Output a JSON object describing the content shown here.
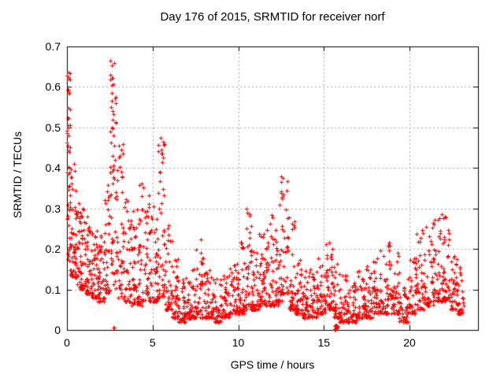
{
  "window": {
    "background": "#ffffff"
  },
  "chart_data": {
    "type": "scatter",
    "title": "Day 176 of 2015, SRMTID for receiver norf",
    "xlabel": "GPS time / hours",
    "ylabel": "SRMTID / TECUs",
    "xlim": [
      0,
      24
    ],
    "ylim": [
      0,
      0.7
    ],
    "xticks": [
      {
        "v": 0,
        "label": "0"
      },
      {
        "v": 5,
        "label": "5"
      },
      {
        "v": 10,
        "label": "10"
      },
      {
        "v": 15,
        "label": "15"
      },
      {
        "v": 20,
        "label": "20"
      }
    ],
    "yticks": [
      {
        "v": 0.0,
        "label": "0"
      },
      {
        "v": 0.1,
        "label": "0.1"
      },
      {
        "v": 0.2,
        "label": "0.2"
      },
      {
        "v": 0.3,
        "label": "0.3"
      },
      {
        "v": 0.4,
        "label": "0.4"
      },
      {
        "v": 0.5,
        "label": "0.5"
      },
      {
        "v": 0.6,
        "label": "0.6"
      },
      {
        "v": 0.7,
        "label": "0.7"
      }
    ],
    "grid": true,
    "legend": "none",
    "marker": {
      "shape": "plus",
      "color": "#ff0000",
      "size": 5
    },
    "colors": {
      "marker": "#ff0000",
      "grid": "#a8a8a8",
      "axis": "#000000",
      "text": "#000000",
      "background": "#ffffff"
    },
    "seed": 20150176,
    "bins_format": [
      "x_start",
      "x_end",
      "count",
      "y_low",
      "y_high",
      "tail_power"
    ],
    "density_bins": [
      [
        0.0,
        0.2,
        40,
        0.17,
        0.635,
        1.5
      ],
      [
        0.2,
        0.6,
        55,
        0.13,
        0.42,
        2.0
      ],
      [
        0.6,
        1.0,
        52,
        0.1,
        0.32,
        2.0
      ],
      [
        1.0,
        1.4,
        48,
        0.09,
        0.28,
        2.0
      ],
      [
        1.4,
        1.8,
        48,
        0.08,
        0.26,
        2.0
      ],
      [
        1.8,
        2.2,
        45,
        0.07,
        0.24,
        2.0
      ],
      [
        2.2,
        2.5,
        34,
        0.09,
        0.36,
        1.8
      ],
      [
        2.5,
        2.9,
        48,
        0.1,
        0.665,
        1.4
      ],
      [
        2.9,
        3.3,
        42,
        0.08,
        0.46,
        1.8
      ],
      [
        3.3,
        3.7,
        40,
        0.07,
        0.34,
        2.0
      ],
      [
        3.7,
        4.1,
        40,
        0.06,
        0.3,
        2.0
      ],
      [
        4.1,
        4.5,
        40,
        0.06,
        0.37,
        2.0
      ],
      [
        4.5,
        4.9,
        40,
        0.07,
        0.35,
        2.0
      ],
      [
        4.9,
        5.3,
        40,
        0.07,
        0.31,
        2.0
      ],
      [
        5.3,
        5.7,
        42,
        0.08,
        0.48,
        1.6
      ],
      [
        5.7,
        6.1,
        40,
        0.05,
        0.26,
        2.2
      ],
      [
        6.1,
        6.5,
        40,
        0.03,
        0.18,
        2.2
      ],
      [
        6.5,
        7.0,
        44,
        0.02,
        0.13,
        2.2
      ],
      [
        7.0,
        7.5,
        44,
        0.03,
        0.15,
        2.2
      ],
      [
        7.5,
        8.0,
        44,
        0.03,
        0.23,
        2.4
      ],
      [
        8.0,
        8.5,
        44,
        0.03,
        0.15,
        2.2
      ],
      [
        8.5,
        9.0,
        44,
        0.02,
        0.13,
        2.2
      ],
      [
        9.0,
        9.5,
        44,
        0.03,
        0.14,
        2.2
      ],
      [
        9.5,
        10.0,
        44,
        0.04,
        0.17,
        2.2
      ],
      [
        10.0,
        10.4,
        40,
        0.04,
        0.22,
        2.2
      ],
      [
        10.4,
        10.8,
        40,
        0.05,
        0.3,
        2.2
      ],
      [
        10.8,
        11.2,
        40,
        0.05,
        0.2,
        2.2
      ],
      [
        11.2,
        11.6,
        40,
        0.06,
        0.25,
        2.2
      ],
      [
        11.6,
        12.0,
        40,
        0.06,
        0.3,
        2.2
      ],
      [
        12.0,
        12.4,
        40,
        0.06,
        0.25,
        2.2
      ],
      [
        12.4,
        12.9,
        44,
        0.07,
        0.38,
        1.8
      ],
      [
        12.9,
        13.3,
        40,
        0.05,
        0.28,
        2.2
      ],
      [
        13.3,
        13.7,
        40,
        0.04,
        0.18,
        2.2
      ],
      [
        13.7,
        14.1,
        40,
        0.03,
        0.15,
        2.2
      ],
      [
        14.1,
        14.6,
        44,
        0.03,
        0.16,
        2.2
      ],
      [
        14.6,
        15.1,
        44,
        0.04,
        0.18,
        2.2
      ],
      [
        15.1,
        15.5,
        40,
        0.05,
        0.23,
        2.2
      ],
      [
        15.5,
        15.9,
        36,
        0.03,
        0.18,
        2.2
      ],
      [
        15.9,
        16.4,
        44,
        0.02,
        0.14,
        2.2
      ],
      [
        16.4,
        16.9,
        44,
        0.02,
        0.13,
        2.2
      ],
      [
        16.9,
        17.4,
        44,
        0.03,
        0.15,
        2.2
      ],
      [
        17.4,
        17.9,
        44,
        0.03,
        0.17,
        2.2
      ],
      [
        17.9,
        18.4,
        44,
        0.04,
        0.2,
        2.2
      ],
      [
        18.4,
        18.9,
        44,
        0.04,
        0.22,
        2.2
      ],
      [
        18.9,
        19.4,
        44,
        0.04,
        0.2,
        2.2
      ],
      [
        19.4,
        19.9,
        40,
        0.02,
        0.12,
        2.2
      ],
      [
        19.9,
        20.4,
        40,
        0.04,
        0.2,
        2.2
      ],
      [
        20.4,
        20.9,
        40,
        0.05,
        0.25,
        2.2
      ],
      [
        20.9,
        21.4,
        40,
        0.06,
        0.27,
        2.0
      ],
      [
        21.4,
        21.9,
        42,
        0.07,
        0.29,
        2.0
      ],
      [
        21.9,
        22.4,
        42,
        0.07,
        0.3,
        2.0
      ],
      [
        22.4,
        22.8,
        38,
        0.05,
        0.22,
        2.2
      ],
      [
        22.8,
        23.2,
        30,
        0.04,
        0.17,
        2.2
      ]
    ],
    "notable_points": [
      [
        0.08,
        0.635
      ],
      [
        0.1,
        0.62
      ],
      [
        0.07,
        0.593
      ],
      [
        0.12,
        0.585
      ],
      [
        0.09,
        0.523
      ],
      [
        0.11,
        0.48
      ],
      [
        0.06,
        0.455
      ],
      [
        0.13,
        0.44
      ],
      [
        2.55,
        0.665
      ],
      [
        2.52,
        0.63
      ],
      [
        2.6,
        0.585
      ],
      [
        2.63,
        0.565
      ],
      [
        2.57,
        0.55
      ],
      [
        2.66,
        0.52
      ],
      [
        2.61,
        0.5
      ],
      [
        2.7,
        0.48
      ],
      [
        2.74,
        0.455
      ],
      [
        2.68,
        0.43
      ],
      [
        2.8,
        0.42
      ],
      [
        3.05,
        0.455
      ],
      [
        3.1,
        0.43
      ],
      [
        5.45,
        0.475
      ],
      [
        5.5,
        0.445
      ],
      [
        5.55,
        0.415
      ],
      [
        5.42,
        0.39
      ],
      [
        12.6,
        0.375
      ],
      [
        12.65,
        0.335
      ],
      [
        12.55,
        0.325
      ],
      [
        10.5,
        0.3
      ],
      [
        10.52,
        0.29
      ],
      [
        21.88,
        0.285
      ],
      [
        22.05,
        0.28
      ],
      [
        2.7,
        0.006
      ],
      [
        2.76,
        0.006
      ],
      [
        15.62,
        0.002
      ],
      [
        15.64,
        0.009
      ],
      [
        15.66,
        0.004
      ],
      [
        15.68,
        0.011
      ],
      [
        15.7,
        0.001
      ],
      [
        15.72,
        0.007
      ],
      [
        15.74,
        0.003
      ],
      [
        15.76,
        0.01
      ],
      [
        15.78,
        0.005
      ],
      [
        15.65,
        0.0
      ],
      [
        15.71,
        0.012
      ],
      [
        15.75,
        0.008
      ]
    ]
  }
}
